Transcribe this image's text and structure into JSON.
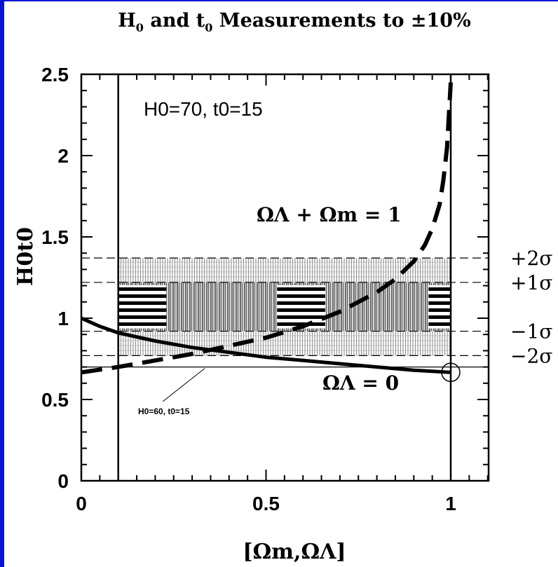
{
  "colors": {
    "frame": "#0a14d8",
    "ink": "#000000",
    "background": "#ffffff",
    "hatch": "#7a7a7a"
  },
  "chart_data": {
    "type": "line",
    "title": "H0 and t0 Measurements to ±10%",
    "xlabel": "[Ωm,ΩΛ]",
    "ylabel": "H0t0",
    "xlim": [
      0,
      1.1
    ],
    "ylim": [
      0,
      2.5
    ],
    "x_ticks": [
      "0",
      "0.5",
      "1"
    ],
    "y_ticks": [
      "0",
      "0.5",
      "1",
      "1.5",
      "2",
      "2.5"
    ],
    "annotations": {
      "params": "H0=70, t0=15",
      "flat_label": "ΩΛ + Ωm = 1",
      "open_label": "ΩΛ = 0",
      "reference_label": "H0=60, t0=15"
    },
    "sigma_lines": [
      {
        "label": "+2σ",
        "y": 1.37
      },
      {
        "label": "+1σ",
        "y": 1.22
      },
      {
        "label": "−1σ",
        "y": 0.92
      },
      {
        "label": "−2σ",
        "y": 0.77
      }
    ],
    "reference_line_y": 0.7,
    "vertical_lines_x": [
      0.1,
      1.0
    ],
    "bands": {
      "two_sigma": [
        0.77,
        1.37
      ],
      "one_sigma": [
        0.92,
        1.22
      ]
    },
    "series": [
      {
        "name": "ΩΛ = 0",
        "style": "solid",
        "x": [
          0.0,
          0.05,
          0.1,
          0.2,
          0.3,
          0.4,
          0.5,
          0.6,
          0.7,
          0.8,
          0.9,
          1.0
        ],
        "y": [
          1.0,
          0.95,
          0.91,
          0.86,
          0.82,
          0.79,
          0.76,
          0.74,
          0.72,
          0.7,
          0.68,
          0.667
        ]
      },
      {
        "name": "ΩΛ + Ωm = 1",
        "style": "dashed",
        "x": [
          0.0,
          0.1,
          0.2,
          0.3,
          0.4,
          0.5,
          0.6,
          0.7,
          0.8,
          0.85,
          0.9,
          0.93,
          0.95,
          0.97,
          0.98,
          0.99,
          1.0
        ],
        "y": [
          0.667,
          0.7,
          0.74,
          0.78,
          0.83,
          0.88,
          0.95,
          1.04,
          1.16,
          1.24,
          1.35,
          1.45,
          1.55,
          1.7,
          1.85,
          2.05,
          2.45
        ]
      }
    ],
    "marked_point": {
      "x": 1.0,
      "y": 0.667
    },
    "grid": false,
    "legend": "none"
  }
}
